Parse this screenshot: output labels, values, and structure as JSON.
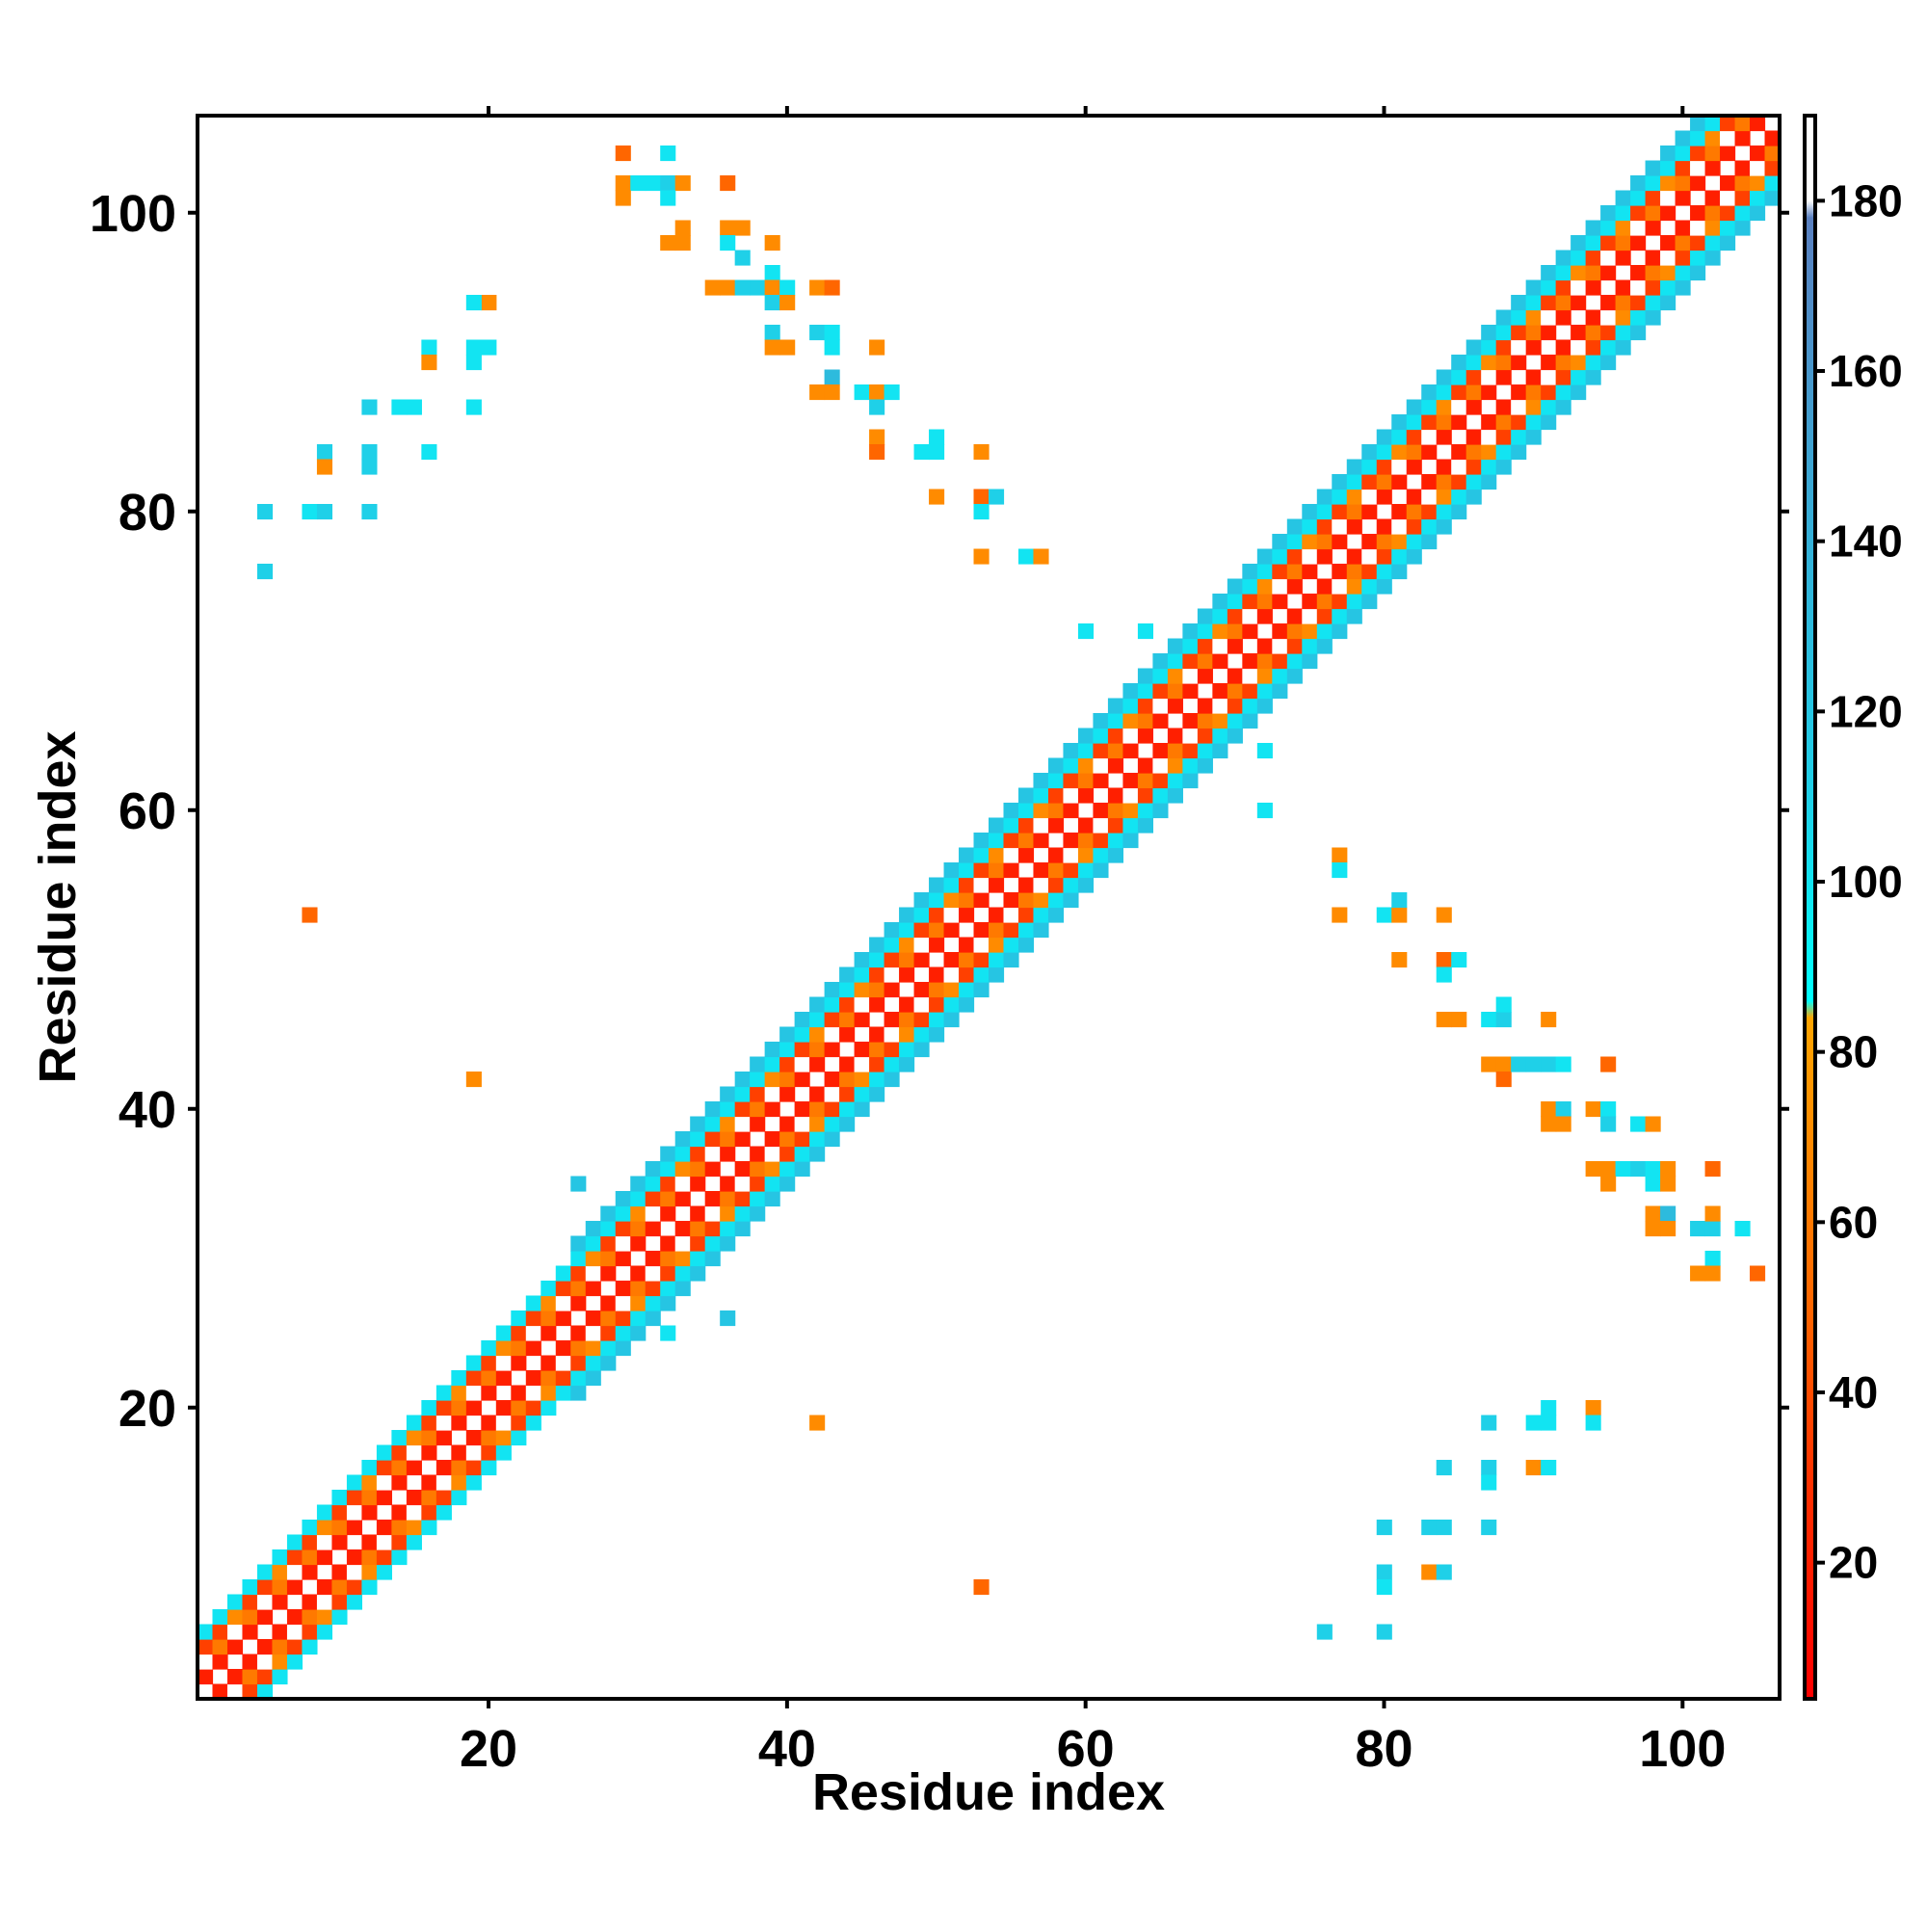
{
  "chart_data": {
    "type": "heatmap",
    "title": "",
    "xlabel": "Residue index",
    "ylabel": "Residue index",
    "xlim": [
      1,
      107
    ],
    "ylim": [
      1,
      107
    ],
    "x_ticks": [
      20,
      40,
      60,
      80,
      100
    ],
    "y_ticks": [
      20,
      40,
      60,
      80,
      100
    ],
    "grid": false,
    "legend": "colorbar-right",
    "colorbar": {
      "ticks": [
        20,
        40,
        60,
        80,
        100,
        120,
        140,
        160,
        180
      ],
      "range": [
        4,
        190
      ],
      "stops": [
        {
          "value": 4,
          "color": "#ff0000"
        },
        {
          "value": 30,
          "color": "#ff3300"
        },
        {
          "value": 50,
          "color": "#ff6600"
        },
        {
          "value": 84,
          "color": "#ffa500"
        },
        {
          "value": 86,
          "color": "#00ffff"
        },
        {
          "value": 110,
          "color": "#1fd0e8"
        },
        {
          "value": 140,
          "color": "#34b0d8"
        },
        {
          "value": 178,
          "color": "#5a80c0"
        },
        {
          "value": 180,
          "color": "#ffffff"
        },
        {
          "value": 190,
          "color": "#ffffff"
        }
      ]
    },
    "diagonal": {
      "start": 1,
      "end": 106,
      "band_value_by_offset": [
        190,
        20,
        60,
        35,
        100,
        120
      ],
      "wide_band_start": 26,
      "wide_band_end": 106,
      "narrow_band_start": 1,
      "narrow_band_end": 26
    },
    "contacts": [
      [
        29,
        104,
        50
      ],
      [
        32,
        104,
        100
      ],
      [
        29,
        102,
        70
      ],
      [
        30,
        102,
        100
      ],
      [
        31,
        102,
        100
      ],
      [
        32,
        102,
        110
      ],
      [
        33,
        102,
        70
      ],
      [
        36,
        102,
        50
      ],
      [
        29,
        101,
        70
      ],
      [
        32,
        101,
        100
      ],
      [
        33,
        99,
        70
      ],
      [
        36,
        99,
        70
      ],
      [
        37,
        99,
        70
      ],
      [
        39,
        98,
        70
      ],
      [
        32,
        98,
        70
      ],
      [
        33,
        98,
        70
      ],
      [
        36,
        98,
        100
      ],
      [
        37,
        97,
        110
      ],
      [
        39,
        96,
        100
      ],
      [
        35,
        95,
        70
      ],
      [
        36,
        95,
        70
      ],
      [
        37,
        95,
        110
      ],
      [
        38,
        95,
        110
      ],
      [
        39,
        95,
        70
      ],
      [
        40,
        95,
        100
      ],
      [
        42,
        95,
        70
      ],
      [
        43,
        95,
        50
      ],
      [
        39,
        94,
        110
      ],
      [
        40,
        94,
        70
      ],
      [
        39,
        92,
        110
      ],
      [
        42,
        92,
        110
      ],
      [
        43,
        92,
        100
      ],
      [
        39,
        91,
        70
      ],
      [
        40,
        91,
        70
      ],
      [
        43,
        91,
        100
      ],
      [
        46,
        91,
        70
      ],
      [
        43,
        89,
        130
      ],
      [
        42,
        88,
        70
      ],
      [
        43,
        88,
        70
      ],
      [
        45,
        88,
        100
      ],
      [
        46,
        88,
        70
      ],
      [
        47,
        88,
        100
      ],
      [
        46,
        87,
        110
      ],
      [
        46,
        85,
        70
      ],
      [
        46,
        84,
        50
      ],
      [
        49,
        84,
        100
      ],
      [
        50,
        84,
        100
      ],
      [
        53,
        84,
        70
      ],
      [
        50,
        85,
        100
      ],
      [
        50,
        81,
        70
      ],
      [
        53,
        81,
        50
      ],
      [
        54,
        81,
        110
      ],
      [
        53,
        80,
        100
      ],
      [
        53,
        77,
        70
      ],
      [
        56,
        77,
        100
      ],
      [
        57,
        77,
        70
      ],
      [
        20,
        94,
        70
      ],
      [
        19,
        94,
        100
      ],
      [
        20,
        91,
        100
      ],
      [
        19,
        91,
        100
      ],
      [
        19,
        90,
        100
      ],
      [
        16,
        91,
        100
      ],
      [
        16,
        90,
        70
      ],
      [
        14,
        87,
        100
      ],
      [
        15,
        87,
        100
      ],
      [
        12,
        87,
        110
      ],
      [
        19,
        87,
        100
      ],
      [
        16,
        84,
        100
      ],
      [
        12,
        84,
        110
      ],
      [
        9,
        84,
        110
      ],
      [
        9,
        83,
        70
      ],
      [
        12,
        83,
        110
      ],
      [
        5,
        80,
        110
      ],
      [
        8,
        80,
        100
      ],
      [
        9,
        80,
        110
      ],
      [
        12,
        80,
        110
      ],
      [
        5,
        76,
        110
      ],
      [
        8,
        53,
        50
      ],
      [
        19,
        42,
        70
      ],
      [
        42,
        19,
        70
      ],
      [
        53,
        8,
        50
      ],
      [
        60,
        72,
        100
      ],
      [
        64,
        72,
        100
      ],
      [
        72,
        64,
        100
      ],
      [
        72,
        60,
        100
      ],
      [
        26,
        35,
        120
      ],
      [
        36,
        26,
        120
      ],
      [
        32,
        25,
        100
      ],
      [
        77,
        57,
        70
      ],
      [
        77,
        56,
        100
      ],
      [
        77,
        53,
        70
      ],
      [
        80,
        53,
        100
      ],
      [
        81,
        53,
        70
      ],
      [
        81,
        54,
        110
      ],
      [
        84,
        53,
        70
      ],
      [
        81,
        50,
        70
      ],
      [
        84,
        50,
        50
      ],
      [
        85,
        50,
        100
      ],
      [
        84,
        49,
        100
      ],
      [
        84,
        46,
        70
      ],
      [
        85,
        46,
        70
      ],
      [
        87,
        46,
        100
      ],
      [
        88,
        46,
        110
      ],
      [
        88,
        47,
        100
      ],
      [
        91,
        46,
        70
      ],
      [
        87,
        43,
        70
      ],
      [
        88,
        43,
        70
      ],
      [
        88,
        42,
        50
      ],
      [
        89,
        43,
        110
      ],
      [
        90,
        43,
        110
      ],
      [
        91,
        43,
        110
      ],
      [
        92,
        43,
        100
      ],
      [
        95,
        43,
        50
      ],
      [
        91,
        40,
        70
      ],
      [
        92,
        40,
        110
      ],
      [
        94,
        40,
        70
      ],
      [
        95,
        40,
        100
      ],
      [
        91,
        39,
        70
      ],
      [
        92,
        39,
        70
      ],
      [
        95,
        39,
        110
      ],
      [
        97,
        39,
        100
      ],
      [
        98,
        39,
        70
      ],
      [
        94,
        36,
        70
      ],
      [
        95,
        36,
        70
      ],
      [
        96,
        36,
        100
      ],
      [
        97,
        36,
        110
      ],
      [
        98,
        36,
        100
      ],
      [
        99,
        36,
        70
      ],
      [
        95,
        35,
        70
      ],
      [
        98,
        35,
        100
      ],
      [
        99,
        35,
        70
      ],
      [
        102,
        36,
        50
      ],
      [
        98,
        33,
        70
      ],
      [
        99,
        33,
        130
      ],
      [
        99,
        32,
        70
      ],
      [
        98,
        32,
        70
      ],
      [
        101,
        32,
        110
      ],
      [
        102,
        32,
        110
      ],
      [
        102,
        33,
        70
      ],
      [
        104,
        32,
        100
      ],
      [
        102,
        30,
        100
      ],
      [
        101,
        29,
        70
      ],
      [
        102,
        29,
        70
      ],
      [
        105,
        29,
        50
      ],
      [
        76,
        5,
        110
      ],
      [
        80,
        5,
        110
      ],
      [
        80,
        9,
        110
      ],
      [
        80,
        8,
        100
      ],
      [
        83,
        9,
        70
      ],
      [
        84,
        9,
        110
      ],
      [
        80,
        12,
        110
      ],
      [
        83,
        12,
        110
      ],
      [
        84,
        12,
        110
      ],
      [
        87,
        12,
        110
      ],
      [
        84,
        16,
        110
      ],
      [
        87,
        16,
        110
      ],
      [
        87,
        15,
        100
      ],
      [
        90,
        16,
        70
      ],
      [
        91,
        16,
        100
      ],
      [
        87,
        19,
        110
      ],
      [
        90,
        19,
        100
      ],
      [
        91,
        19,
        100
      ],
      [
        91,
        20,
        100
      ],
      [
        94,
        20,
        70
      ],
      [
        94,
        19,
        100
      ]
    ]
  }
}
